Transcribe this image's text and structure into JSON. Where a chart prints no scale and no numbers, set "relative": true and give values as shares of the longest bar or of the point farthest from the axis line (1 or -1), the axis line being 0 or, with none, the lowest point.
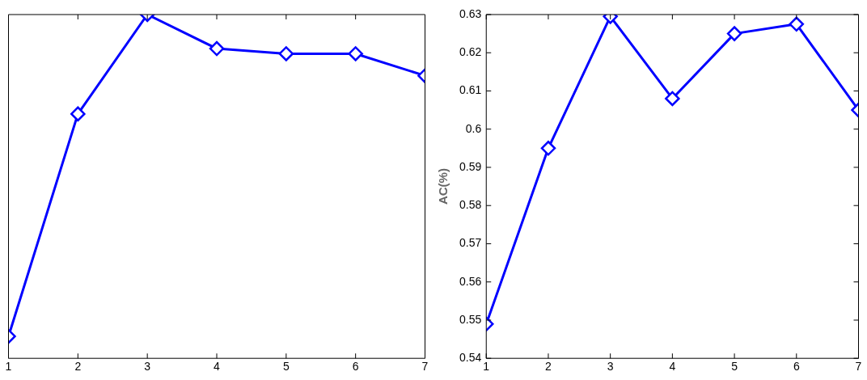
{
  "chart_data": [
    {
      "type": "line",
      "relative": true,
      "tick_labels": "x",
      "x": [
        1,
        2,
        3,
        4,
        5,
        6,
        7
      ],
      "xlim": [
        1,
        7
      ],
      "xticks": [
        1,
        2,
        3,
        4,
        5,
        6,
        7
      ],
      "marker": "diamond",
      "line_style": "solid",
      "series": [
        {
          "color": "#0000ff",
          "values": [
            0.064,
            0.711,
            1,
            0.901,
            0.886,
            0.886,
            0.822
          ]
        }
      ]
    },
    {
      "type": "line",
      "ylabel": "AC(%)",
      "x": [
        1,
        2,
        3,
        4,
        5,
        6,
        7
      ],
      "xlim": [
        1,
        7
      ],
      "xticks": [
        1,
        2,
        3,
        4,
        5,
        6,
        7
      ],
      "ylim": [
        0.54,
        0.63
      ],
      "yticks": [
        0.54,
        0.55,
        0.56,
        0.57,
        0.58,
        0.59,
        0.6,
        0.61,
        0.62,
        0.63
      ],
      "marker": "diamond",
      "line_style": "solid",
      "series": [
        {
          "color": "#0000ff",
          "values": [
            0.549,
            0.595,
            0.6295,
            0.608,
            0.625,
            0.6275,
            0.605
          ]
        }
      ]
    }
  ]
}
